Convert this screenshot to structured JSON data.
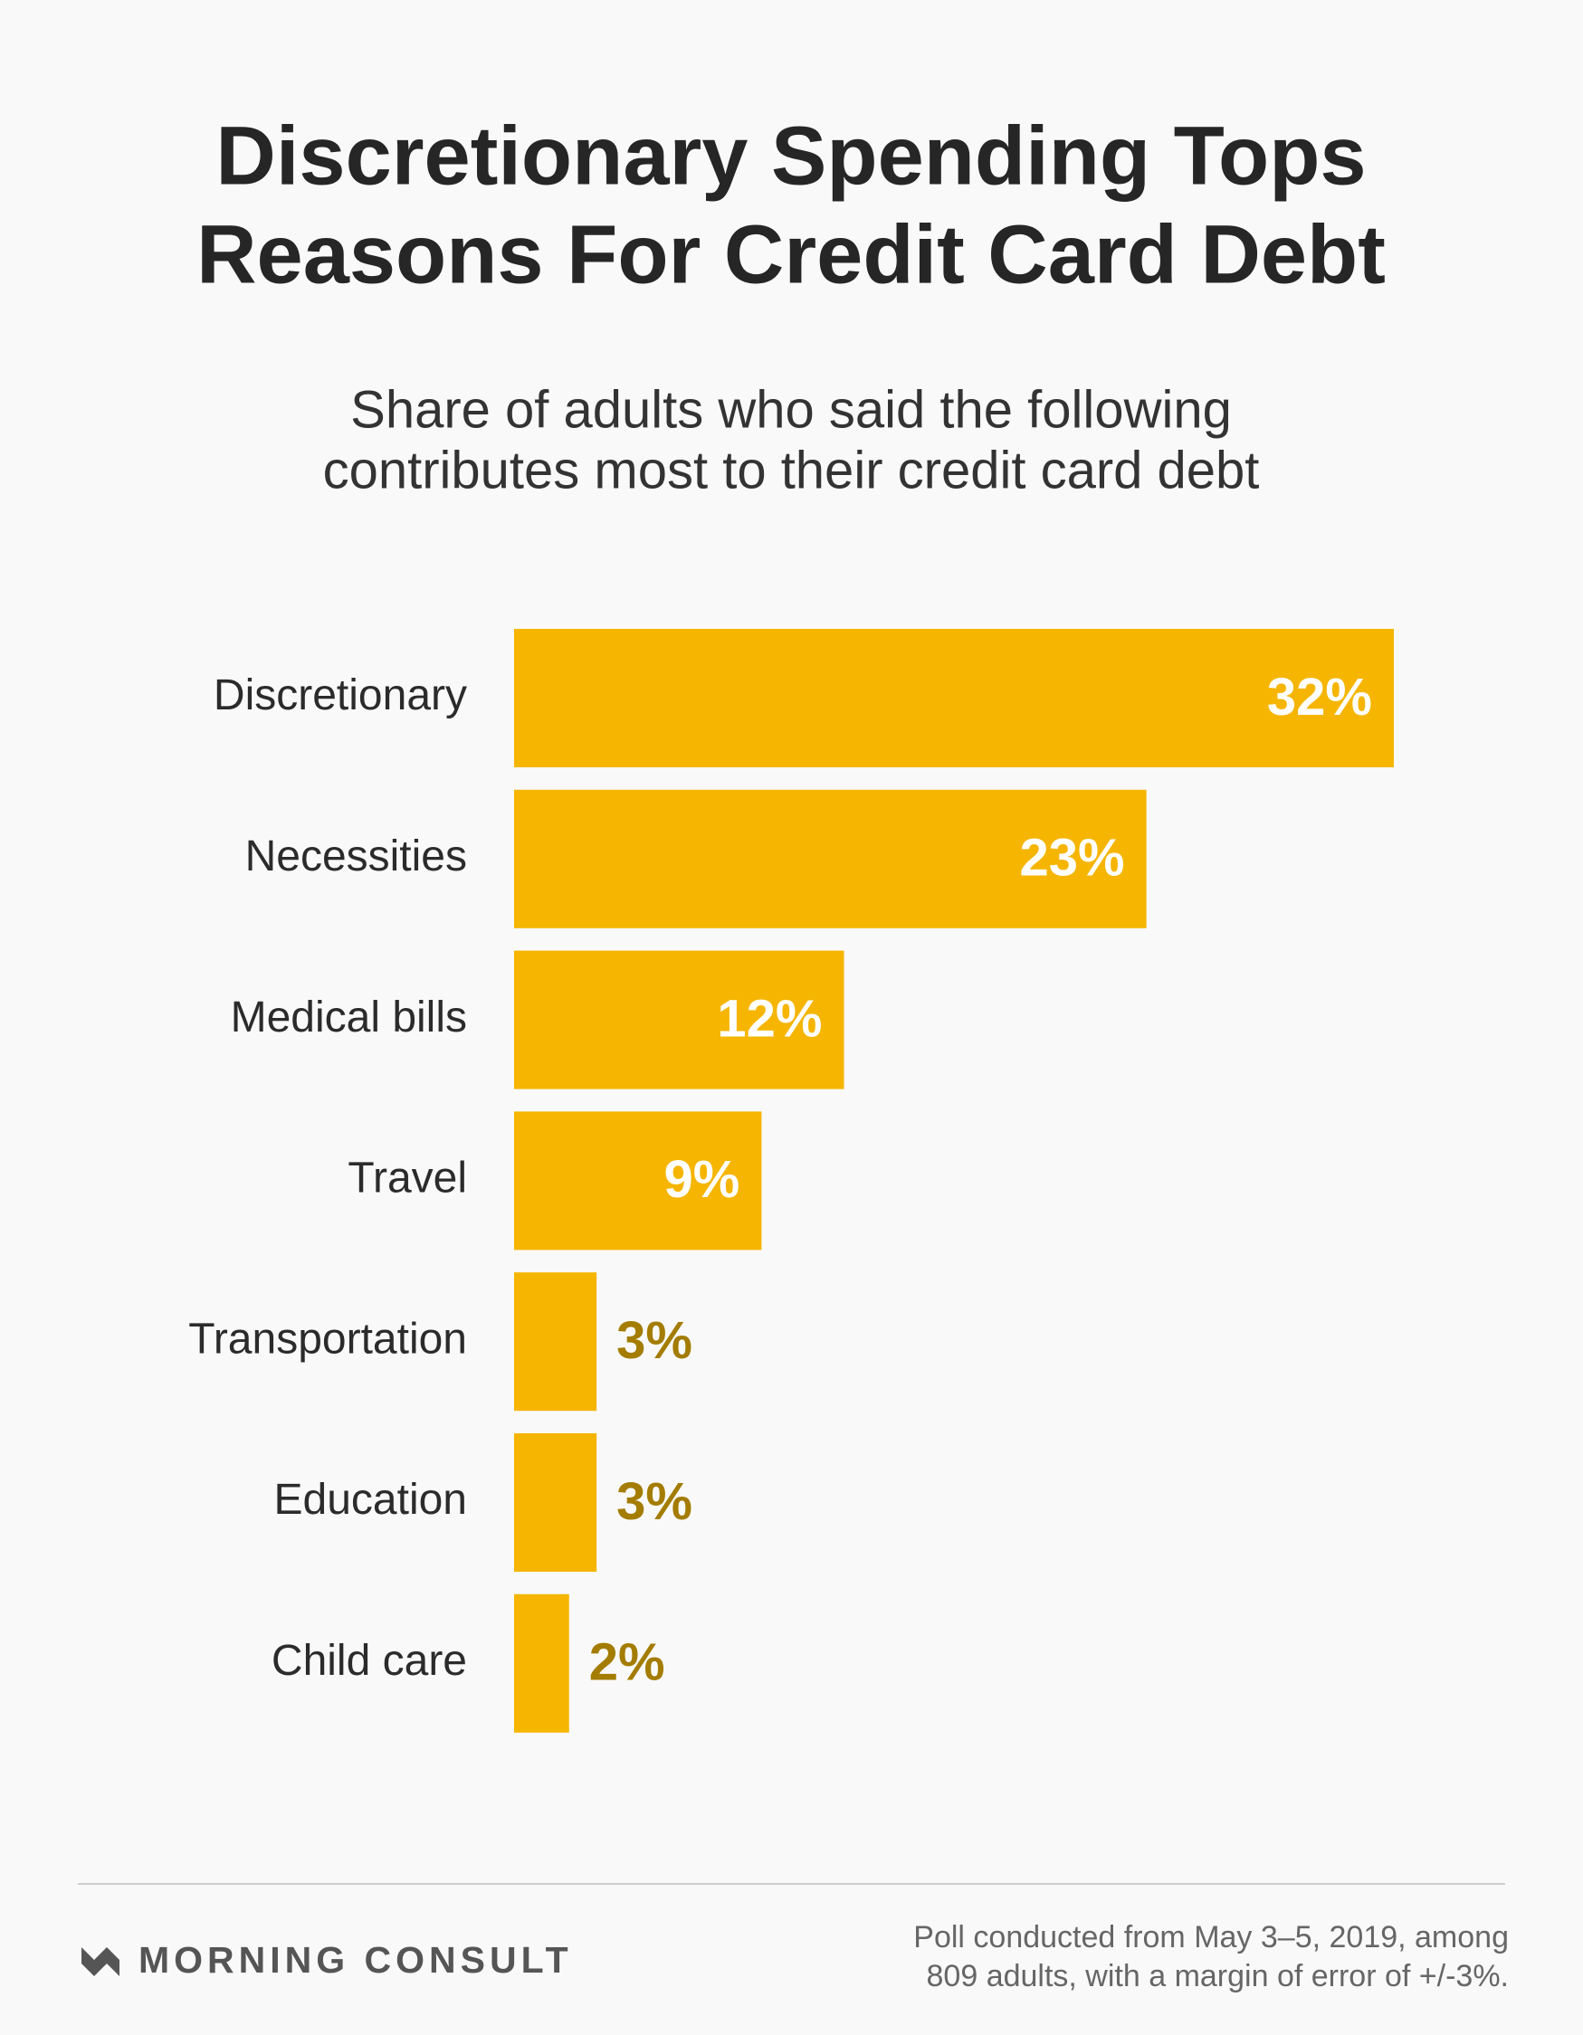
{
  "chart_data": {
    "type": "barh",
    "title": [
      "Discretionary Spending Tops",
      "Reasons For Credit Card Debt"
    ],
    "subtitle": [
      "Share of adults who said the following",
      "contributes most to their credit card debt"
    ],
    "categories": [
      "Discretionary",
      "Necessities",
      "Medical bills",
      "Travel",
      "Transportation",
      "Education",
      "Child care"
    ],
    "values": [
      32,
      23,
      12,
      9,
      3,
      3,
      2
    ],
    "value_labels": [
      "32%",
      "23%",
      "12%",
      "9%",
      "3%",
      "3%",
      "2%"
    ],
    "color": "#f5b501"
  },
  "footer": {
    "brand": "MORNING CONSULT",
    "note": [
      "Poll conducted from May 3–5, 2019, among",
      "809 adults, with a margin of error of +/-3%."
    ]
  }
}
